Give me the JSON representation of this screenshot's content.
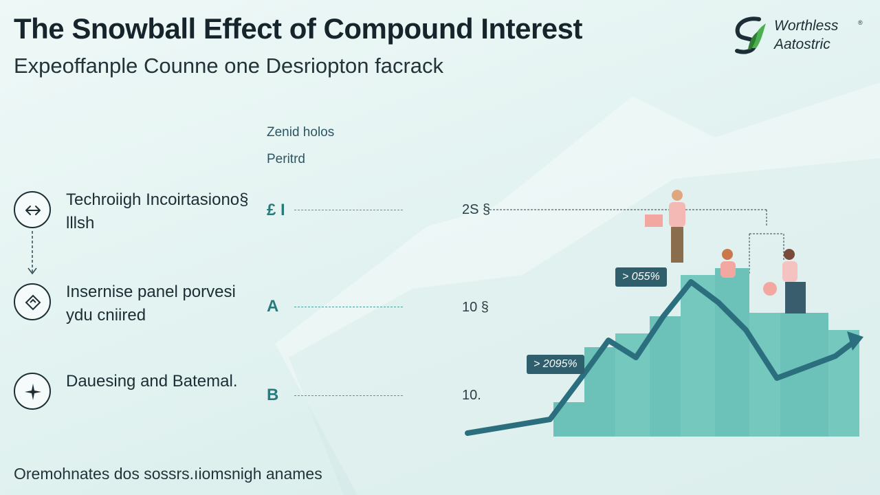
{
  "header": {
    "title": "The Snowball Effect of Compound Interest",
    "subtitle": "Expeoffanple Counne one Desriopton facrack"
  },
  "logo": {
    "line1": "Worthless",
    "line2": "Aatostric",
    "mark": "®",
    "icon": "leaf-swirl-logo"
  },
  "features": [
    {
      "label": "Techroiigh Incoirtasiono§ lllsh",
      "icon": "double-arrow-icon"
    },
    {
      "label": "Insernise panel porvesi ydu cniired",
      "icon": "tag-icon"
    },
    {
      "label": "Dauesing and Batemal.",
      "icon": "compass-star-icon"
    }
  ],
  "middle": {
    "heading1": "Zenid holos",
    "heading2": "Peritrd",
    "rows": [
      "£ I",
      "A",
      "B"
    ]
  },
  "y_labels": [
    "2S §",
    "10 §",
    "10."
  ],
  "callouts": [
    "> 055%",
    "> 2095%"
  ],
  "footer": "Oremohnates dos sossrs.ıiomsnigh anames",
  "colors": {
    "accent": "#2a7a7c",
    "bars": "#6cc2b8",
    "line": "#2b6f7e",
    "callout": "#2f5f6c"
  }
}
